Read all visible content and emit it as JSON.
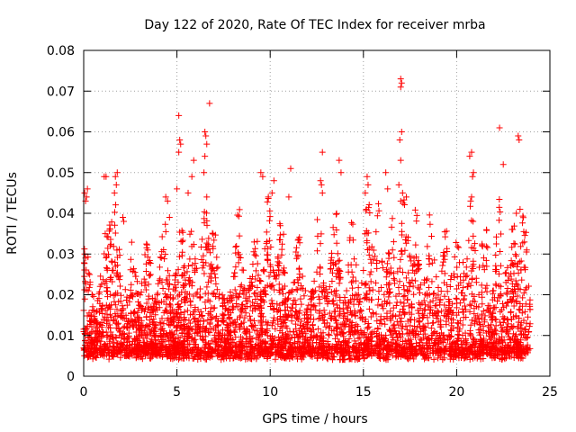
{
  "chart_data": {
    "type": "scatter",
    "title": "Day 122 of 2020, Rate Of TEC Index for receiver mrba",
    "xlabel": "GPS time / hours",
    "ylabel": "ROTI / TECUs",
    "xlim": [
      0,
      25
    ],
    "ylim": [
      0,
      0.08
    ],
    "x_ticks": [
      0,
      5,
      10,
      15,
      20,
      25
    ],
    "x_tick_labels": [
      "0",
      "5",
      "10",
      "15",
      "20",
      "25"
    ],
    "y_ticks": [
      0,
      0.01,
      0.02,
      0.03,
      0.04,
      0.05,
      0.06,
      0.07,
      0.08
    ],
    "y_tick_labels": [
      "0",
      "0.01",
      "0.02",
      "0.03",
      "0.04",
      "0.05",
      "0.06",
      "0.07",
      "0.08"
    ],
    "grid": true,
    "marker": "plus",
    "color": "#ff0000",
    "series": [
      {
        "name": "ROTI",
        "points": [
          [
            0.05,
            0.045
          ],
          [
            0.1,
            0.043
          ],
          [
            0.15,
            0.044
          ],
          [
            0.2,
            0.046
          ],
          [
            0.05,
            0.03
          ],
          [
            0.1,
            0.029
          ],
          [
            1.1,
            0.049
          ],
          [
            1.2,
            0.049
          ],
          [
            1.7,
            0.049
          ],
          [
            1.75,
            0.047
          ],
          [
            1.8,
            0.05
          ],
          [
            1.65,
            0.045
          ],
          [
            2.1,
            0.039
          ],
          [
            2.15,
            0.038
          ],
          [
            4.4,
            0.044
          ],
          [
            4.5,
            0.043
          ],
          [
            4.6,
            0.039
          ],
          [
            5.1,
            0.064
          ],
          [
            5.15,
            0.058
          ],
          [
            5.2,
            0.057
          ],
          [
            5.1,
            0.055
          ],
          [
            5.0,
            0.046
          ],
          [
            5.6,
            0.045
          ],
          [
            5.9,
            0.053
          ],
          [
            5.8,
            0.049
          ],
          [
            6.5,
            0.06
          ],
          [
            6.55,
            0.059
          ],
          [
            6.6,
            0.057
          ],
          [
            6.5,
            0.054
          ],
          [
            6.45,
            0.05
          ],
          [
            6.6,
            0.044
          ],
          [
            6.75,
            0.067
          ],
          [
            9.5,
            0.05
          ],
          [
            9.6,
            0.049
          ],
          [
            10.2,
            0.048
          ],
          [
            10.1,
            0.045
          ],
          [
            9.9,
            0.044
          ],
          [
            11.1,
            0.051
          ],
          [
            11.0,
            0.044
          ],
          [
            12.8,
            0.055
          ],
          [
            12.7,
            0.048
          ],
          [
            12.75,
            0.047
          ],
          [
            12.8,
            0.045
          ],
          [
            13.7,
            0.053
          ],
          [
            13.8,
            0.05
          ],
          [
            15.2,
            0.049
          ],
          [
            15.25,
            0.047
          ],
          [
            15.1,
            0.045
          ],
          [
            16.2,
            0.05
          ],
          [
            16.3,
            0.046
          ],
          [
            17.0,
            0.073
          ],
          [
            17.05,
            0.072
          ],
          [
            17.0,
            0.071
          ],
          [
            17.05,
            0.06
          ],
          [
            16.95,
            0.058
          ],
          [
            17.0,
            0.053
          ],
          [
            16.9,
            0.047
          ],
          [
            17.1,
            0.045
          ],
          [
            17.0,
            0.043
          ],
          [
            17.3,
            0.044
          ],
          [
            20.8,
            0.055
          ],
          [
            20.7,
            0.054
          ],
          [
            20.9,
            0.05
          ],
          [
            20.85,
            0.049
          ],
          [
            20.8,
            0.044
          ],
          [
            20.75,
            0.043
          ],
          [
            22.3,
            0.061
          ],
          [
            22.5,
            0.052
          ],
          [
            23.3,
            0.059
          ],
          [
            23.35,
            0.058
          ],
          [
            23.4,
            0.041
          ],
          [
            23.2,
            0.04
          ]
        ]
      }
    ]
  }
}
